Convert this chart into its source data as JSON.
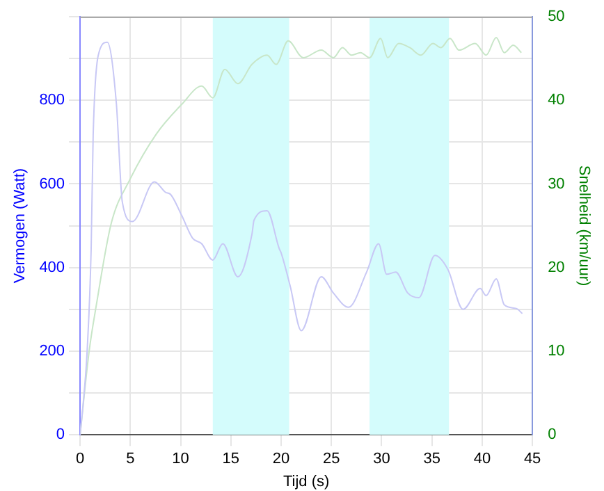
{
  "chart_data": {
    "type": "line",
    "xlabel": "Tijd (s)",
    "ylabel": "Vermogen (Watt)",
    "y2label": "Snelheid (km/uur)",
    "xlim": [
      0,
      45
    ],
    "xticks": [
      0,
      5,
      10,
      15,
      20,
      25,
      30,
      35,
      40,
      45
    ],
    "ylim": [
      0,
      1000
    ],
    "yticks": [
      0,
      {
        "value": 100,
        "label": null
      },
      200,
      {
        "value": 300,
        "label": null
      },
      400,
      {
        "value": 500,
        "label": null
      },
      600,
      {
        "value": 700,
        "label": null
      },
      800,
      {
        "value": 900,
        "label": null
      },
      {
        "value": 1000,
        "label": null
      }
    ],
    "y2lim": [
      0,
      50
    ],
    "y2ticks": [
      0,
      10,
      20,
      30,
      40,
      50
    ],
    "grid": true,
    "legend": false,
    "marker": "none",
    "line_style": "solid",
    "bands": [
      {
        "axis": "x",
        "from": 13.2,
        "to": 20.8,
        "color": "#d4fcfc"
      },
      {
        "axis": "x",
        "from": 28.8,
        "to": 36.7,
        "color": "#d4fcfc"
      }
    ],
    "series": [
      {
        "color": "#c8c8f5",
        "x": [
          0,
          0.4,
          0.7,
          1.1,
          1.3,
          1.8,
          2.7,
          3.6,
          4.2,
          5.2,
          7.4,
          8.5,
          9.0,
          10.1,
          11.2,
          12.1,
          13.2,
          14.2,
          15.7,
          17.1,
          17.3,
          18.6,
          19.8,
          20.0,
          20.9,
          22.0,
          24.0,
          25.2,
          26.7,
          28.5,
          29.7,
          30.5,
          31.4,
          32.6,
          33.7,
          35.3,
          36.6,
          38.1,
          39.8,
          40.4,
          41.4,
          42.2,
          43.4,
          44.0
        ],
        "values": [
          0,
          100,
          200,
          445,
          716,
          907,
          939,
          795,
          557,
          510,
          605,
          580,
          575,
          525,
          470,
          457,
          418,
          457,
          378,
          480,
          513,
          536,
          446,
          435,
          356,
          249,
          378,
          339,
          305,
          389,
          457,
          384,
          389,
          339,
          328,
          429,
          395,
          300,
          350,
          333,
          373,
          311,
          302,
          290
        ]
      },
      {
        "color": "#c8e6c8",
        "axis": "y2",
        "x": [
          0,
          0.9,
          1.6,
          3.1,
          4.9,
          7.6,
          10.1,
          12.1,
          13.2,
          14.4,
          15.7,
          17.1,
          18.6,
          19.5,
          20.7,
          22.2,
          24.0,
          25.2,
          26.1,
          27.0,
          27.9,
          28.8,
          29.9,
          30.6,
          31.7,
          32.8,
          33.9,
          35.1,
          35.9,
          36.8,
          37.7,
          39.3,
          40.4,
          41.4,
          42.2,
          43.1,
          43.9
        ],
        "values": [
          0,
          10,
          15.4,
          25.3,
          30.4,
          36,
          39.5,
          41.7,
          40.3,
          43.7,
          42,
          44.3,
          45.4,
          44.3,
          47.1,
          45.1,
          46,
          45.1,
          46.3,
          45.4,
          45.7,
          45.1,
          47.4,
          45.1,
          46.8,
          46.3,
          45.4,
          46.8,
          46.3,
          47.4,
          46,
          46.8,
          45.4,
          47.5,
          45.7,
          46.6,
          45.7
        ]
      }
    ]
  }
}
